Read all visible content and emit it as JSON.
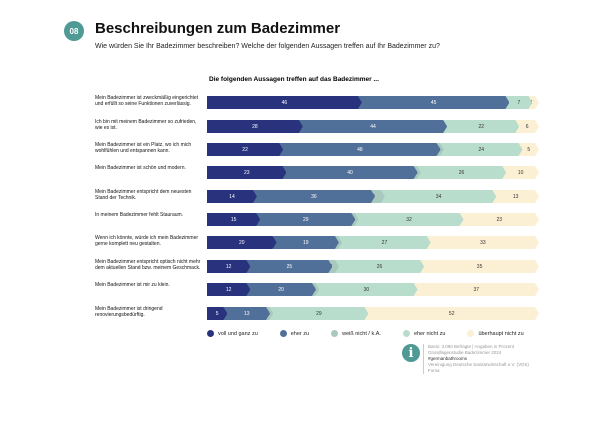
{
  "header": {
    "badge": "08",
    "title": "Beschreibungen zum Badezimmer",
    "subtitle": "Wie würden Sie Ihr Badezimmer beschreiben? Welche der folgenden Aussagen treffen auf Ihr Badezimmer zu?"
  },
  "chart_data": {
    "type": "bar",
    "orientation": "horizontal",
    "stacked": true,
    "unit": "%",
    "title": "Die folgenden Aussagen treffen auf das Badezimmer ...",
    "categories": [
      "Mein Badezimmer ist zweckmäßig eingerichtet und erfüllt so seine Funktionen zuverlässig.",
      "Ich bin mit meinem Badezimmer so zufrieden, wie es ist.",
      "Mein Badezimmer ist ein Platz, wo ich mich wohlfühlen und entspannen kann.",
      "Mein Badezimmer ist schön und modern.",
      "Mein Badezimmer entspricht dem neuesten Stand der Technik.",
      "In meinem Badezimmer fehlt Stauraum.",
      "Wenn ich könnte, würde ich mein Badezimmer gerne komplett neu gestalten.",
      "Mein Badezimmer entspricht optisch nicht mehr dem aktuellen Stand bzw. meinem Geschmack.",
      "Mein Badezimmer ist mir zu klein.",
      "Mein Badezimmer ist dringend renovierungsbedürftig."
    ],
    "series": [
      {
        "name": "voll und ganz zu",
        "color": "#28327d",
        "values": [
          46,
          28,
          22,
          23,
          14,
          15,
          20,
          12,
          12,
          5
        ]
      },
      {
        "name": "eher zu",
        "color": "#506f99",
        "values": [
          45,
          44,
          48,
          40,
          36,
          29,
          19,
          25,
          20,
          13
        ]
      },
      {
        "name": "weiß nicht / k.A.",
        "color": "#a9c8be",
        "values": [
          0,
          0,
          1,
          1,
          3,
          1,
          1,
          2,
          1,
          1
        ]
      },
      {
        "name": "eher nicht zu",
        "color": "#b9ddcd",
        "values": [
          7,
          22,
          24,
          26,
          34,
          32,
          27,
          26,
          30,
          29
        ]
      },
      {
        "name": "überhaupt nicht zu",
        "color": "#fcf0d4",
        "values": [
          2,
          6,
          5,
          10,
          13,
          23,
          33,
          35,
          37,
          52
        ]
      }
    ],
    "xlim": [
      0,
      100
    ],
    "legend": "bottom"
  },
  "footer": {
    "info_icon": "info-icon",
    "lines": [
      "Basis: 3.090 Befragte | Angaben in Prozent",
      "Grundlagenstudie Badezimmer 2024"
    ],
    "hashtag": "#germanbathrooms",
    "source": [
      "Vereinigung Deutsche Sanitärwirtschaft e.V. (VDS)",
      "Forsa"
    ]
  }
}
